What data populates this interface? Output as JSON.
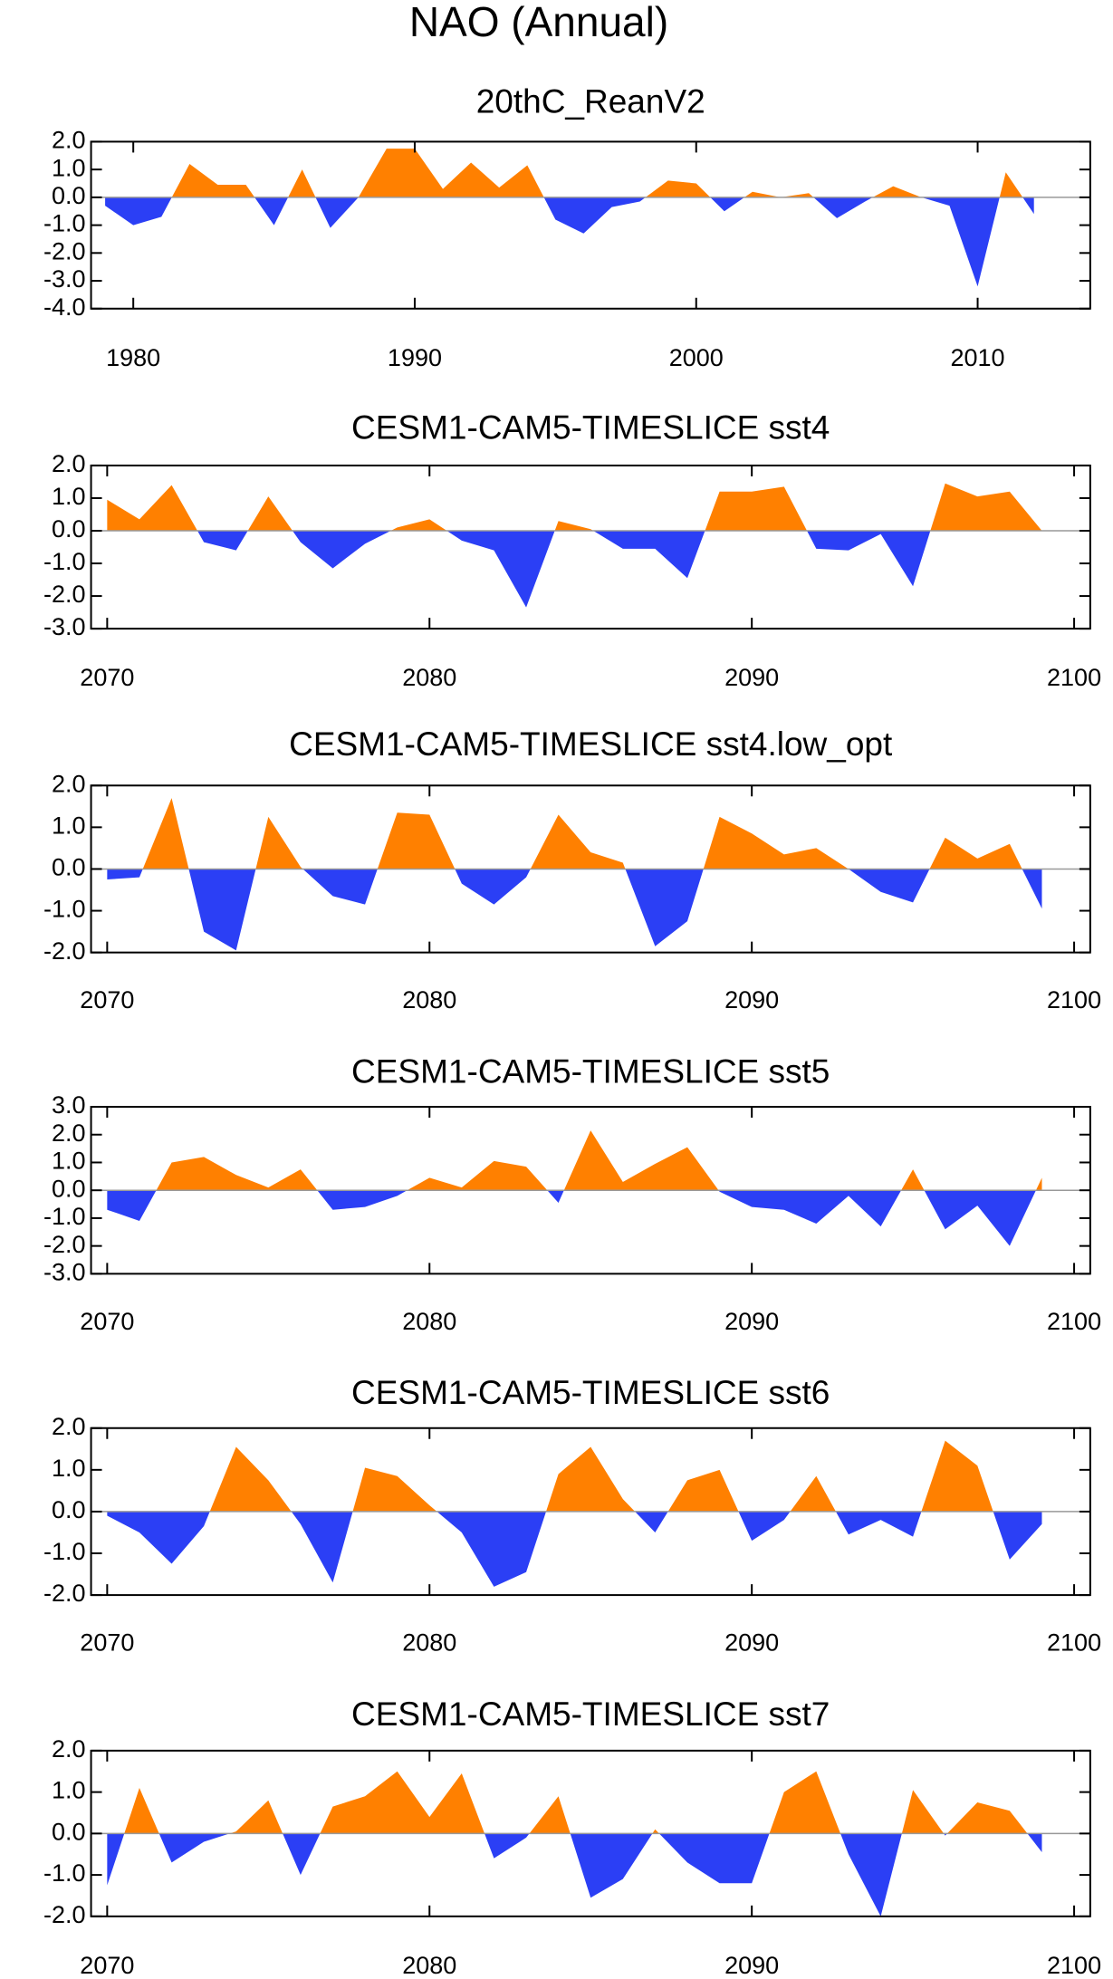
{
  "title": "NAO (Annual)",
  "chart_data": [
    {
      "type": "area",
      "title": "20thC_ReanV2",
      "x": [
        1979,
        1980,
        1981,
        1982,
        1983,
        1984,
        1985,
        1986,
        1987,
        1988,
        1989,
        1990,
        1991,
        1992,
        1993,
        1994,
        1995,
        1996,
        1997,
        1998,
        1999,
        2000,
        2001,
        2002,
        2003,
        2004,
        2005,
        2006,
        2007,
        2008,
        2009,
        2010,
        2011,
        2012
      ],
      "values": [
        -0.3,
        -1.0,
        -0.7,
        1.2,
        0.45,
        0.45,
        -1.0,
        1.0,
        -1.1,
        0.0,
        1.75,
        1.75,
        0.3,
        1.25,
        0.35,
        1.15,
        -0.8,
        -1.3,
        -0.35,
        -0.15,
        0.6,
        0.5,
        -0.5,
        0.2,
        0.0,
        0.15,
        -0.75,
        -0.15,
        0.4,
        0.0,
        -0.3,
        -3.2,
        0.9,
        -0.6
      ],
      "color_above": "#ff8000",
      "color_below": "#2b3ff5",
      "xlim": [
        1978.5,
        2014
      ],
      "xticks": [
        1980,
        1990,
        2000,
        2010
      ],
      "ylim": [
        -4,
        2
      ],
      "yticks": [
        {
          "value": 2,
          "label": "2.0"
        },
        {
          "value": 1,
          "label": "1.0"
        },
        {
          "value": 0,
          "label": "0.0"
        },
        {
          "value": -1,
          "label": "-1.0"
        },
        {
          "value": -2,
          "label": "-2.0"
        },
        {
          "value": -3,
          "label": "-3.0"
        },
        {
          "value": -4,
          "label": "-4.0"
        }
      ]
    },
    {
      "type": "area",
      "title": "CESM1-CAM5-TIMESLICE sst4",
      "x": [
        2070,
        2071,
        2072,
        2073,
        2074,
        2075,
        2076,
        2077,
        2078,
        2079,
        2080,
        2081,
        2082,
        2083,
        2084,
        2085,
        2086,
        2087,
        2088,
        2089,
        2090,
        2091,
        2092,
        2093,
        2094,
        2095,
        2096,
        2097,
        2098,
        2099
      ],
      "values": [
        0.95,
        0.35,
        1.4,
        -0.35,
        -0.6,
        1.05,
        -0.35,
        -1.15,
        -0.4,
        0.1,
        0.35,
        -0.3,
        -0.6,
        -2.35,
        0.3,
        0.05,
        -0.55,
        -0.55,
        -1.45,
        1.2,
        1.2,
        1.35,
        -0.55,
        -0.6,
        -0.1,
        -1.7,
        1.45,
        1.05,
        1.2,
        0.0
      ],
      "color_above": "#ff8000",
      "color_below": "#2b3ff5",
      "xlim": [
        2069.5,
        2100.5
      ],
      "xticks": [
        2070,
        2080,
        2090,
        2100
      ],
      "ylim": [
        -3,
        2
      ],
      "yticks": [
        {
          "value": 2,
          "label": "2.0"
        },
        {
          "value": 1,
          "label": "1.0"
        },
        {
          "value": 0,
          "label": "0.0"
        },
        {
          "value": -1,
          "label": "-1.0"
        },
        {
          "value": -2,
          "label": "-2.0"
        },
        {
          "value": -3,
          "label": "-3.0"
        }
      ]
    },
    {
      "type": "area",
      "title": "CESM1-CAM5-TIMESLICE sst4.low_opt",
      "x": [
        2070,
        2071,
        2072,
        2073,
        2074,
        2075,
        2076,
        2077,
        2078,
        2079,
        2080,
        2081,
        2082,
        2083,
        2084,
        2085,
        2086,
        2087,
        2088,
        2089,
        2090,
        2091,
        2092,
        2093,
        2094,
        2095,
        2096,
        2097,
        2098,
        2099
      ],
      "values": [
        -0.25,
        -0.2,
        1.7,
        -1.5,
        -1.95,
        1.25,
        0.05,
        -0.65,
        -0.85,
        1.35,
        1.3,
        -0.35,
        -0.85,
        -0.2,
        1.3,
        0.4,
        0.15,
        -1.85,
        -1.25,
        1.25,
        0.85,
        0.35,
        0.5,
        0.0,
        -0.55,
        -0.8,
        0.75,
        0.25,
        0.6,
        -0.95
      ],
      "color_above": "#ff8000",
      "color_below": "#2b3ff5",
      "xlim": [
        2069.5,
        2100.5
      ],
      "xticks": [
        2070,
        2080,
        2090,
        2100
      ],
      "ylim": [
        -2,
        2
      ],
      "yticks": [
        {
          "value": 2,
          "label": "2.0"
        },
        {
          "value": 1,
          "label": "1.0"
        },
        {
          "value": 0,
          "label": "0.0"
        },
        {
          "value": -1,
          "label": "-1.0"
        },
        {
          "value": -2,
          "label": "-2.0"
        }
      ]
    },
    {
      "type": "area",
      "title": "CESM1-CAM5-TIMESLICE sst5",
      "x": [
        2070,
        2071,
        2072,
        2073,
        2074,
        2075,
        2076,
        2077,
        2078,
        2079,
        2080,
        2081,
        2082,
        2083,
        2084,
        2085,
        2086,
        2087,
        2088,
        2089,
        2090,
        2091,
        2092,
        2093,
        2094,
        2095,
        2096,
        2097,
        2098,
        2099
      ],
      "values": [
        -0.7,
        -1.1,
        1.0,
        1.2,
        0.55,
        0.1,
        0.75,
        -0.7,
        -0.6,
        -0.2,
        0.45,
        0.1,
        1.05,
        0.85,
        -0.45,
        2.15,
        0.3,
        0.95,
        1.55,
        -0.05,
        -0.6,
        -0.7,
        -1.2,
        -0.2,
        -1.3,
        0.75,
        -1.4,
        -0.55,
        -2.0,
        0.45
      ],
      "color_above": "#ff8000",
      "color_below": "#2b3ff5",
      "xlim": [
        2069.5,
        2100.5
      ],
      "xticks": [
        2070,
        2080,
        2090,
        2100
      ],
      "ylim": [
        -3,
        3
      ],
      "yticks": [
        {
          "value": 3,
          "label": "3.0"
        },
        {
          "value": 2,
          "label": "2.0"
        },
        {
          "value": 1,
          "label": "1.0"
        },
        {
          "value": 0,
          "label": "0.0"
        },
        {
          "value": -1,
          "label": "-1.0"
        },
        {
          "value": -2,
          "label": "-2.0"
        },
        {
          "value": -3,
          "label": "-3.0"
        }
      ]
    },
    {
      "type": "area",
      "title": "CESM1-CAM5-TIMESLICE sst6",
      "x": [
        2070,
        2071,
        2072,
        2073,
        2074,
        2075,
        2076,
        2077,
        2078,
        2079,
        2080,
        2081,
        2082,
        2083,
        2084,
        2085,
        2086,
        2087,
        2088,
        2089,
        2090,
        2091,
        2092,
        2093,
        2094,
        2095,
        2096,
        2097,
        2098,
        2099
      ],
      "values": [
        -0.1,
        -0.5,
        -1.25,
        -0.35,
        1.55,
        0.75,
        -0.3,
        -1.7,
        1.05,
        0.85,
        0.15,
        -0.5,
        -1.8,
        -1.45,
        0.9,
        1.55,
        0.3,
        -0.5,
        0.75,
        1.0,
        -0.7,
        -0.2,
        0.85,
        -0.55,
        -0.2,
        -0.6,
        1.7,
        1.1,
        -1.15,
        -0.3
      ],
      "color_above": "#ff8000",
      "color_below": "#2b3ff5",
      "xlim": [
        2069.5,
        2100.5
      ],
      "xticks": [
        2070,
        2080,
        2090,
        2100
      ],
      "ylim": [
        -2,
        2
      ],
      "yticks": [
        {
          "value": 2,
          "label": "2.0"
        },
        {
          "value": 1,
          "label": "1.0"
        },
        {
          "value": 0,
          "label": "0.0"
        },
        {
          "value": -1,
          "label": "-1.0"
        },
        {
          "value": -2,
          "label": "-2.0"
        }
      ]
    },
    {
      "type": "area",
      "title": "CESM1-CAM5-TIMESLICE sst7",
      "x": [
        2070,
        2071,
        2072,
        2073,
        2074,
        2075,
        2076,
        2077,
        2078,
        2079,
        2080,
        2081,
        2082,
        2083,
        2084,
        2085,
        2086,
        2087,
        2088,
        2089,
        2090,
        2091,
        2092,
        2093,
        2094,
        2095,
        2096,
        2097,
        2098,
        2099
      ],
      "values": [
        -1.25,
        1.1,
        -0.7,
        -0.2,
        0.05,
        0.8,
        -1.0,
        0.65,
        0.9,
        1.5,
        0.4,
        1.45,
        -0.6,
        -0.1,
        0.9,
        -1.55,
        -1.1,
        0.1,
        -0.7,
        -1.2,
        -1.2,
        1.0,
        1.5,
        -0.5,
        -2.0,
        1.05,
        -0.05,
        0.75,
        0.55,
        -0.45
      ],
      "color_above": "#ff8000",
      "color_below": "#2b3ff5",
      "xlim": [
        2069.5,
        2100.5
      ],
      "xticks": [
        2070,
        2080,
        2090,
        2100
      ],
      "ylim": [
        -2,
        2
      ],
      "yticks": [
        {
          "value": 2,
          "label": "2.0"
        },
        {
          "value": 1,
          "label": "1.0"
        },
        {
          "value": 0,
          "label": "0.0"
        },
        {
          "value": -1,
          "label": "-1.0"
        },
        {
          "value": -2,
          "label": "-2.0"
        }
      ]
    }
  ]
}
